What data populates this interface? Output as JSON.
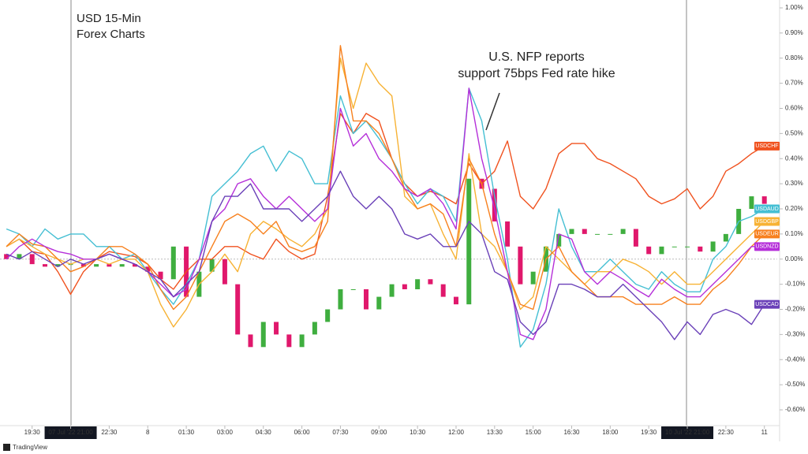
{
  "chart_data": {
    "type": "line",
    "title": [
      "USD 15-Min",
      "Forex Charts"
    ],
    "annotation": [
      "U.S. NFP reports",
      "support 75bps Fed rate hike"
    ],
    "brand": "TradingView",
    "xlim": [
      -0.5,
      60
    ],
    "xticks": [
      {
        "value": 2,
        "label": "19:30"
      },
      {
        "value": 5,
        "label": "07 Jul '22  21:00"
      },
      {
        "value": 8,
        "label": "22:30"
      },
      {
        "value": 11,
        "label": "8"
      },
      {
        "value": 14,
        "label": "01:30"
      },
      {
        "value": 17,
        "label": "03:00"
      },
      {
        "value": 20,
        "label": "04:30"
      },
      {
        "value": 23,
        "label": "06:00"
      },
      {
        "value": 26,
        "label": "07:30"
      },
      {
        "value": 29,
        "label": "09:00"
      },
      {
        "value": 32,
        "label": "10:30"
      },
      {
        "value": 35,
        "label": "12:00"
      },
      {
        "value": 38,
        "label": "13:30"
      },
      {
        "value": 41,
        "label": "15:00"
      },
      {
        "value": 44,
        "label": "16:30"
      },
      {
        "value": 47,
        "label": "18:00"
      },
      {
        "value": 50,
        "label": "19:30"
      },
      {
        "value": 53,
        "label": "10 Jul '22  21:00"
      },
      {
        "value": 56,
        "label": "22:30"
      },
      {
        "value": 59,
        "label": "11"
      }
    ],
    "ylim": [
      -0.6,
      1.0
    ],
    "yticks": [
      {
        "value": 1.0,
        "label": "1.00%"
      },
      {
        "value": 0.9,
        "label": "0.90%"
      },
      {
        "value": 0.8,
        "label": "0.80%"
      },
      {
        "value": 0.7,
        "label": "0.70%"
      },
      {
        "value": 0.6,
        "label": "0.60%"
      },
      {
        "value": 0.5,
        "label": "0.50%"
      },
      {
        "value": 0.4,
        "label": "0.40%"
      },
      {
        "value": 0.3,
        "label": "0.30%"
      },
      {
        "value": 0.2,
        "label": "0.20%"
      },
      {
        "value": 0.1,
        "label": "0.10%"
      },
      {
        "value": 0,
        "label": "0.00%"
      },
      {
        "value": -0.1,
        "label": "-0.10%"
      },
      {
        "value": -0.2,
        "label": "-0.20%"
      },
      {
        "value": -0.3,
        "label": "-0.30%"
      },
      {
        "value": -0.4,
        "label": "-0.40%"
      },
      {
        "value": -0.5,
        "label": "-0.50%"
      },
      {
        "value": -0.6,
        "label": "-0.60%"
      }
    ],
    "candles": {
      "up_color": "#3fae3f",
      "down_color": "#e0186c",
      "open": [
        0.02,
        0.0,
        0.02,
        -0.02,
        -0.03,
        -0.02,
        -0.02,
        -0.03,
        -0.02,
        -0.03,
        -0.02,
        -0.03,
        -0.05,
        -0.08,
        0.05,
        -0.15,
        -0.05,
        0.0,
        -0.1,
        -0.3,
        -0.35,
        -0.25,
        -0.3,
        -0.35,
        -0.3,
        -0.25,
        -0.2,
        -0.12,
        -0.12,
        -0.2,
        -0.15,
        -0.1,
        -0.12,
        -0.08,
        -0.1,
        -0.15,
        -0.18,
        0.32,
        0.28,
        0.15,
        0.05,
        -0.1,
        -0.05,
        0.05,
        0.1,
        0.12,
        0.1,
        0.1,
        0.1,
        0.12,
        0.05,
        0.02,
        0.05,
        0.05,
        0.05,
        0.03,
        0.07,
        0.1,
        0.2,
        0.25
      ],
      "close": [
        0.0,
        0.02,
        -0.02,
        -0.03,
        -0.02,
        -0.02,
        -0.03,
        -0.02,
        -0.03,
        -0.02,
        -0.03,
        -0.05,
        -0.08,
        0.05,
        -0.15,
        -0.05,
        0.0,
        -0.1,
        -0.3,
        -0.35,
        -0.25,
        -0.3,
        -0.35,
        -0.3,
        -0.25,
        -0.2,
        -0.12,
        -0.12,
        -0.2,
        -0.15,
        -0.1,
        -0.12,
        -0.08,
        -0.1,
        -0.15,
        -0.18,
        0.32,
        0.28,
        0.15,
        0.05,
        -0.1,
        -0.05,
        0.05,
        0.1,
        0.12,
        0.1,
        0.1,
        0.1,
        0.12,
        0.05,
        0.02,
        0.05,
        0.05,
        0.05,
        0.03,
        0.07,
        0.1,
        0.2,
        0.25,
        0.22
      ]
    },
    "series": [
      {
        "name": "USDCHF",
        "color": "#f0521f",
        "values": [
          0.05,
          0.08,
          0.03,
          0.02,
          -0.05,
          -0.14,
          -0.05,
          0.0,
          0.03,
          0.02,
          0.01,
          -0.02,
          -0.08,
          -0.12,
          -0.05,
          0.0,
          0.0,
          0.05,
          0.05,
          0.02,
          0.0,
          0.08,
          0.03,
          0.0,
          0.02,
          0.25,
          0.58,
          0.5,
          0.58,
          0.55,
          0.4,
          0.3,
          0.25,
          0.27,
          0.25,
          0.22,
          0.38,
          0.3,
          0.35,
          0.47,
          0.25,
          0.2,
          0.28,
          0.42,
          0.46,
          0.46,
          0.4,
          0.38,
          0.35,
          0.32,
          0.25,
          0.22,
          0.24,
          0.28,
          0.2,
          0.25,
          0.35,
          0.38,
          0.42,
          0.45
        ]
      },
      {
        "name": "USDAUD",
        "color": "#45bfd3",
        "values": [
          0.12,
          0.1,
          0.05,
          0.12,
          0.08,
          0.1,
          0.1,
          0.05,
          0.05,
          0.0,
          0.02,
          -0.05,
          -0.12,
          -0.18,
          -0.1,
          0.0,
          0.25,
          0.3,
          0.35,
          0.42,
          0.45,
          0.35,
          0.43,
          0.4,
          0.3,
          0.3,
          0.65,
          0.5,
          0.55,
          0.48,
          0.4,
          0.3,
          0.22,
          0.28,
          0.25,
          0.15,
          0.68,
          0.55,
          0.25,
          0.0,
          -0.35,
          -0.28,
          -0.1,
          0.2,
          0.05,
          -0.05,
          -0.05,
          0.0,
          -0.05,
          -0.1,
          -0.12,
          -0.05,
          -0.1,
          -0.13,
          -0.13,
          0.0,
          0.05,
          0.15,
          0.17,
          0.2
        ]
      },
      {
        "name": "USDGBP",
        "color": "#f7b234",
        "values": [
          0.05,
          0.08,
          0.05,
          0.02,
          0.0,
          -0.02,
          0.0,
          0.0,
          -0.02,
          0.0,
          0.0,
          -0.05,
          -0.18,
          -0.27,
          -0.2,
          -0.1,
          -0.05,
          0.02,
          -0.05,
          0.1,
          0.15,
          0.12,
          0.08,
          0.05,
          0.1,
          0.2,
          0.8,
          0.6,
          0.78,
          0.7,
          0.65,
          0.25,
          0.2,
          0.22,
          0.1,
          0.0,
          0.42,
          0.1,
          0.05,
          -0.05,
          -0.2,
          -0.15,
          0.05,
          0.0,
          -0.05,
          -0.1,
          -0.05,
          -0.05,
          0.0,
          -0.02,
          -0.05,
          -0.1,
          -0.05,
          -0.1,
          -0.1,
          -0.05,
          0.0,
          0.05,
          0.1,
          0.15
        ]
      },
      {
        "name": "USDEUR",
        "color": "#f7801e",
        "values": [
          0.05,
          0.1,
          0.06,
          0.05,
          0.0,
          -0.05,
          -0.03,
          0.0,
          0.05,
          0.05,
          0.02,
          -0.02,
          -0.12,
          -0.2,
          -0.15,
          -0.05,
          0.05,
          0.15,
          0.18,
          0.15,
          0.1,
          0.15,
          0.05,
          0.03,
          0.05,
          0.15,
          0.85,
          0.55,
          0.55,
          0.5,
          0.4,
          0.28,
          0.2,
          0.22,
          0.18,
          0.05,
          0.4,
          0.3,
          0.1,
          -0.05,
          -0.18,
          -0.2,
          0.0,
          0.05,
          -0.05,
          -0.1,
          -0.15,
          -0.15,
          -0.15,
          -0.18,
          -0.18,
          -0.18,
          -0.15,
          -0.18,
          -0.18,
          -0.12,
          -0.08,
          -0.02,
          0.05,
          0.1
        ]
      },
      {
        "name": "USDNZD",
        "color": "#b52fd9",
        "values": [
          0.0,
          0.05,
          0.08,
          0.05,
          0.03,
          0.02,
          0.0,
          0.0,
          0.02,
          0.0,
          -0.02,
          -0.05,
          -0.1,
          -0.15,
          -0.12,
          0.0,
          0.15,
          0.2,
          0.3,
          0.32,
          0.25,
          0.2,
          0.25,
          0.2,
          0.15,
          0.2,
          0.6,
          0.45,
          0.5,
          0.4,
          0.35,
          0.28,
          0.25,
          0.28,
          0.22,
          0.12,
          0.68,
          0.4,
          0.2,
          -0.05,
          -0.3,
          -0.32,
          -0.2,
          0.1,
          0.08,
          -0.05,
          -0.1,
          -0.05,
          -0.08,
          -0.12,
          -0.15,
          -0.08,
          -0.12,
          -0.15,
          -0.15,
          -0.1,
          -0.05,
          0.0,
          0.05,
          0.05
        ]
      },
      {
        "name": "USDCAD",
        "color": "#6a40b8",
        "values": [
          0.02,
          0.0,
          0.03,
          0.0,
          -0.03,
          0.0,
          -0.02,
          0.0,
          0.02,
          0.0,
          -0.02,
          -0.05,
          -0.08,
          -0.15,
          -0.1,
          -0.05,
          0.15,
          0.25,
          0.25,
          0.3,
          0.2,
          0.2,
          0.2,
          0.15,
          0.2,
          0.25,
          0.35,
          0.25,
          0.2,
          0.25,
          0.2,
          0.1,
          0.08,
          0.1,
          0.05,
          0.05,
          0.15,
          0.1,
          -0.05,
          -0.08,
          -0.25,
          -0.3,
          -0.25,
          -0.1,
          -0.1,
          -0.12,
          -0.15,
          -0.15,
          -0.1,
          -0.15,
          -0.2,
          -0.25,
          -0.32,
          -0.25,
          -0.3,
          -0.22,
          -0.2,
          -0.22,
          -0.26,
          -0.18
        ]
      }
    ]
  }
}
